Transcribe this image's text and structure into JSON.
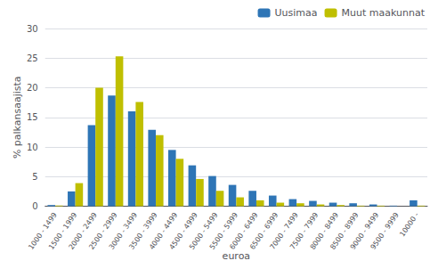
{
  "chart_data": {
    "type": "bar",
    "xlabel": "euroa",
    "ylabel": "% palkansaajista",
    "categories": [
      "1000 - 1499",
      "1500 - 1999",
      "2000 - 2499",
      "2500 - 2999",
      "3000 - 3499",
      "3500 - 3999",
      "4000 - 4499",
      "4500 - 4999",
      "5000 - 5499",
      "5500 - 5999",
      "6000 - 6499",
      "6500 - 6999",
      "7000 - 7499",
      "7500 - 7999",
      "8000 - 8499",
      "8500 - 8999",
      "9000 - 9499",
      "9500 - 9999",
      "10000 -"
    ],
    "series": [
      {
        "name": "Uusimaa",
        "color": "#2E75B6",
        "values": [
          0.2,
          2.5,
          13.7,
          18.7,
          16.0,
          12.9,
          9.5,
          6.9,
          5.1,
          3.6,
          2.6,
          1.8,
          1.2,
          0.9,
          0.6,
          0.5,
          0.3,
          0.1,
          1.0
        ]
      },
      {
        "name": "Muut maakunnat",
        "color": "#BFBF00",
        "values": [
          0.1,
          3.9,
          20.0,
          25.3,
          17.6,
          12.0,
          8.0,
          4.6,
          2.6,
          1.5,
          1.0,
          0.6,
          0.5,
          0.3,
          0.2,
          0.1,
          0.1,
          0.0,
          0.1
        ]
      }
    ],
    "ylim": [
      0,
      30
    ],
    "yticks": [
      0,
      5,
      10,
      15,
      20,
      25,
      30
    ],
    "grid": true,
    "legend": "upper right"
  }
}
